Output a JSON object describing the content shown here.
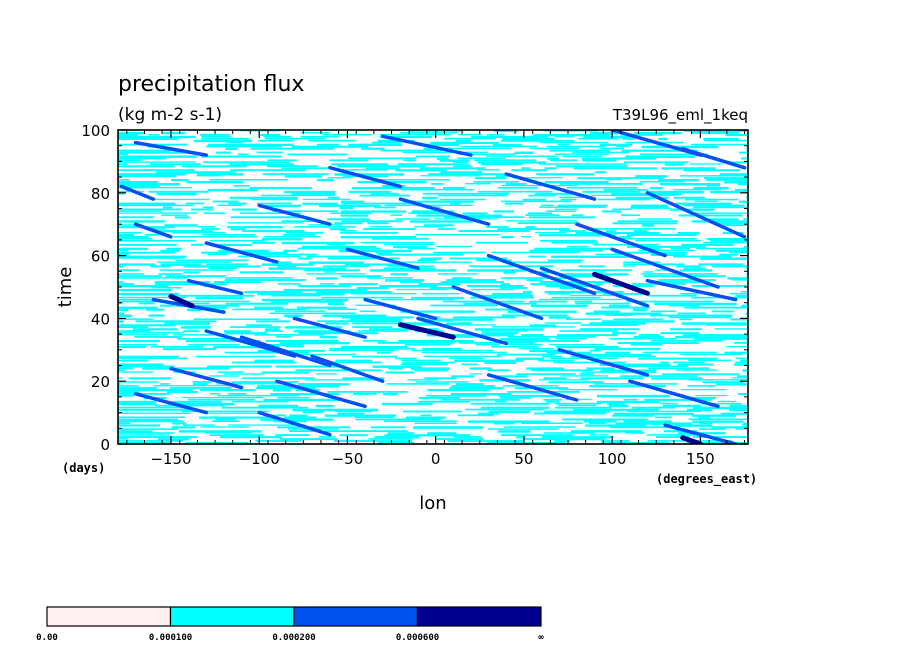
{
  "chart_data": {
    "type": "heatmap",
    "title": "precipitation flux",
    "units": "(kg m-2 s-1)",
    "experiment": "T39L96_eml_1keq",
    "xlabel": "lon",
    "ylabel": "time",
    "x_units": "(degrees_east)",
    "y_units": "(days)",
    "xlim": [
      -180,
      177
    ],
    "ylim": [
      0,
      100
    ],
    "x_ticks": [
      -150,
      -100,
      -50,
      0,
      50,
      100,
      150
    ],
    "y_ticks": [
      0,
      20,
      40,
      60,
      80,
      100
    ],
    "x_tick_labels": [
      "−150",
      "−100",
      "−50",
      "0",
      "50",
      "100",
      "150"
    ],
    "y_tick_labels": [
      "0",
      "20",
      "40",
      "60",
      "80",
      "100"
    ],
    "levels": [
      0.0,
      0.0001,
      0.0002,
      0.0006
    ],
    "level_labels": [
      "0.00",
      "0.000100",
      "0.000200",
      "0.000600",
      "∞"
    ],
    "colors": [
      "#fff0f0",
      "#00ffff",
      "#0050f0",
      "#000090"
    ],
    "features": {
      "streaks": [
        {
          "x0": -178,
          "t0": 82,
          "x1": -160,
          "t1": 78,
          "level": 2
        },
        {
          "x0": -170,
          "t0": 70,
          "x1": -150,
          "t1": 66,
          "level": 2
        },
        {
          "x0": -160,
          "t0": 46,
          "x1": -120,
          "t1": 42,
          "level": 2
        },
        {
          "x0": -140,
          "t0": 52,
          "x1": -110,
          "t1": 48,
          "level": 2
        },
        {
          "x0": -130,
          "t0": 36,
          "x1": -80,
          "t1": 28,
          "level": 2
        },
        {
          "x0": -110,
          "t0": 34,
          "x1": -60,
          "t1": 25,
          "level": 2
        },
        {
          "x0": -90,
          "t0": 20,
          "x1": -40,
          "t1": 12,
          "level": 2
        },
        {
          "x0": -70,
          "t0": 28,
          "x1": -30,
          "t1": 20,
          "level": 2
        },
        {
          "x0": -150,
          "t0": 24,
          "x1": -110,
          "t1": 18,
          "level": 2
        },
        {
          "x0": -170,
          "t0": 16,
          "x1": -130,
          "t1": 10,
          "level": 2
        },
        {
          "x0": -100,
          "t0": 10,
          "x1": -60,
          "t1": 3,
          "level": 2
        },
        {
          "x0": -80,
          "t0": 40,
          "x1": -40,
          "t1": 34,
          "level": 2
        },
        {
          "x0": -40,
          "t0": 46,
          "x1": 0,
          "t1": 40,
          "level": 2
        },
        {
          "x0": -10,
          "t0": 40,
          "x1": 40,
          "t1": 32,
          "level": 2
        },
        {
          "x0": 10,
          "t0": 50,
          "x1": 60,
          "t1": 40,
          "level": 2
        },
        {
          "x0": 30,
          "t0": 60,
          "x1": 90,
          "t1": 48,
          "level": 2
        },
        {
          "x0": 60,
          "t0": 56,
          "x1": 120,
          "t1": 44,
          "level": 2
        },
        {
          "x0": 80,
          "t0": 70,
          "x1": 130,
          "t1": 60,
          "level": 2
        },
        {
          "x0": 100,
          "t0": 62,
          "x1": 160,
          "t1": 50,
          "level": 2
        },
        {
          "x0": 120,
          "t0": 52,
          "x1": 170,
          "t1": 46,
          "level": 2
        },
        {
          "x0": 120,
          "t0": 80,
          "x1": 175,
          "t1": 66,
          "level": 2
        },
        {
          "x0": 140,
          "t0": 94,
          "x1": 175,
          "t1": 88,
          "level": 2
        },
        {
          "x0": 100,
          "t0": 100,
          "x1": 150,
          "t1": 92,
          "level": 2
        },
        {
          "x0": -20,
          "t0": 78,
          "x1": 30,
          "t1": 70,
          "level": 2
        },
        {
          "x0": -60,
          "t0": 88,
          "x1": -20,
          "t1": 82,
          "level": 2
        },
        {
          "x0": 40,
          "t0": 86,
          "x1": 90,
          "t1": 78,
          "level": 2
        },
        {
          "x0": 30,
          "t0": 22,
          "x1": 80,
          "t1": 14,
          "level": 2
        },
        {
          "x0": 70,
          "t0": 30,
          "x1": 120,
          "t1": 22,
          "level": 2
        },
        {
          "x0": 110,
          "t0": 20,
          "x1": 160,
          "t1": 12,
          "level": 2
        },
        {
          "x0": 130,
          "t0": 6,
          "x1": 170,
          "t1": 0,
          "level": 2
        },
        {
          "x0": -130,
          "t0": 64,
          "x1": -90,
          "t1": 58,
          "level": 2
        },
        {
          "x0": -50,
          "t0": 62,
          "x1": -10,
          "t1": 56,
          "level": 2
        },
        {
          "x0": -100,
          "t0": 76,
          "x1": -60,
          "t1": 70,
          "level": 2
        },
        {
          "x0": -170,
          "t0": 96,
          "x1": -130,
          "t1": 92,
          "level": 2
        },
        {
          "x0": -30,
          "t0": 98,
          "x1": 20,
          "t1": 92,
          "level": 2
        },
        {
          "x0": -150,
          "t0": 47,
          "x1": -138,
          "t1": 44,
          "level": 3
        },
        {
          "x0": -20,
          "t0": 38,
          "x1": 10,
          "t1": 34,
          "level": 3
        },
        {
          "x0": 90,
          "t0": 54,
          "x1": 120,
          "t1": 48,
          "level": 3
        },
        {
          "x0": 140,
          "t0": 2,
          "x1": 150,
          "t1": 0,
          "level": 3
        }
      ]
    }
  }
}
